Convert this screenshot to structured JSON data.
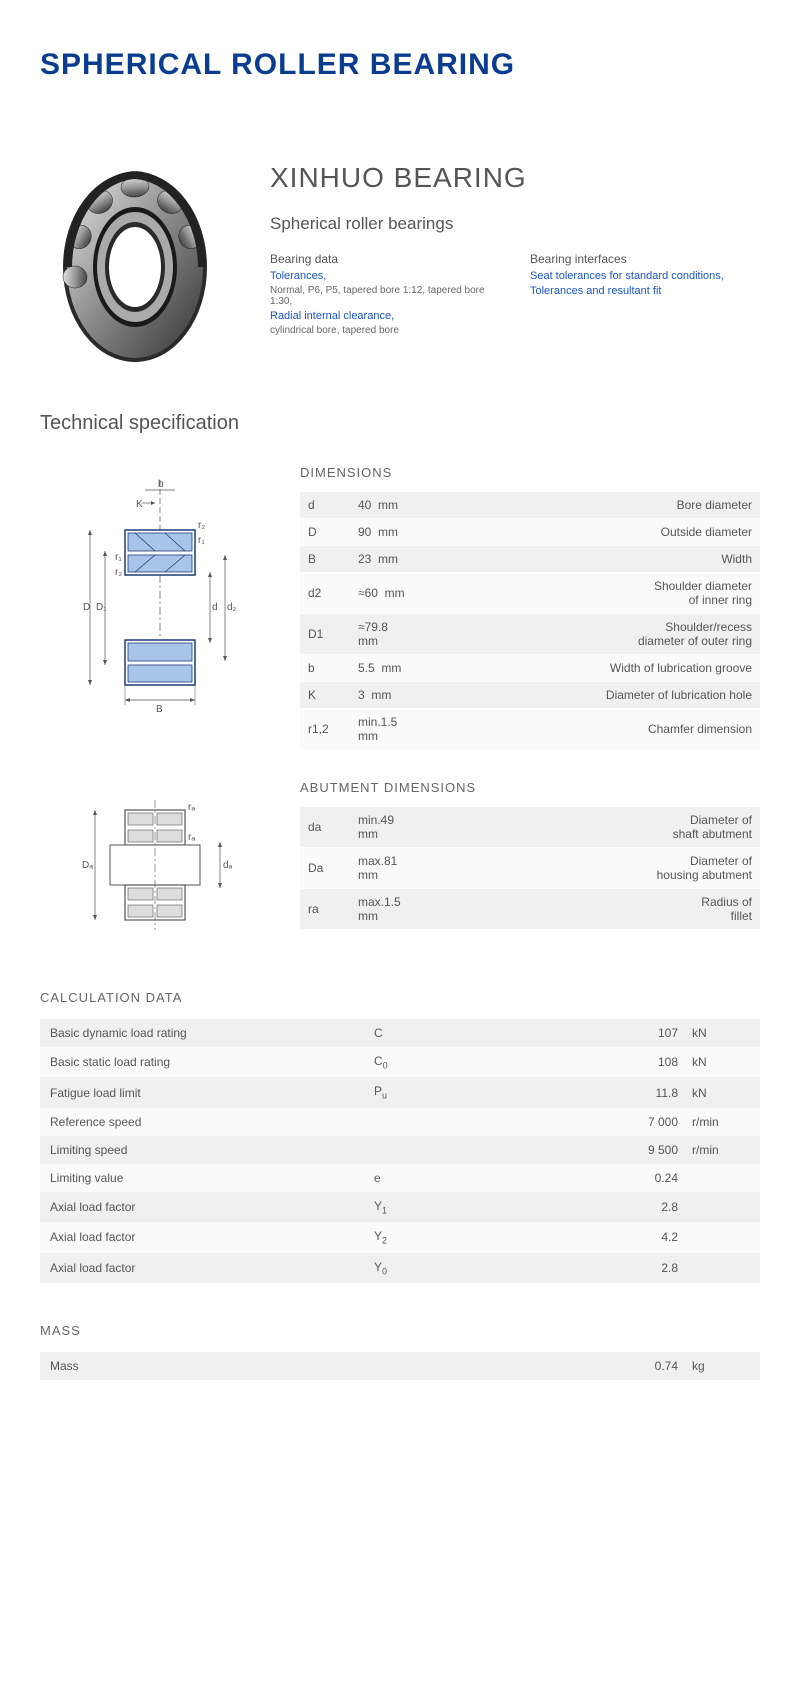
{
  "title": "SPHERICAL ROLLER BEARING",
  "brand": "XINHUO BEARING",
  "subtitle": "Spherical roller bearings",
  "bearingData": {
    "head": "Bearing data",
    "tolerances": "Tolerances,",
    "note1": "Normal, P6, P5, tapered bore 1:12, tapered bore 1:30,",
    "radial": "Radial internal clearance,",
    "note2": "cylindrical bore, tapered bore"
  },
  "bearingInterfaces": {
    "head": "Bearing interfaces",
    "seat": "Seat tolerances for standard conditions,",
    "tol": "Tolerances and resultant fit"
  },
  "techSpec": "Technical specification",
  "dimsLabel": "DIMENSIONS",
  "dims": [
    {
      "sym": "d",
      "val": "40",
      "unit": "mm",
      "desc": "Bore diameter"
    },
    {
      "sym": "D",
      "val": "90",
      "unit": "mm",
      "desc": "Outside diameter"
    },
    {
      "sym": "B",
      "val": "23",
      "unit": "mm",
      "desc": "Width"
    },
    {
      "sym": "d2",
      "val": "≈60",
      "unit": "mm",
      "desc": "Shoulder diameter of inner ring"
    },
    {
      "sym": "D1",
      "val": "≈79.8",
      "unit": "mm",
      "desc": "Shoulder/recess diameter of outer ring"
    },
    {
      "sym": "b",
      "val": "5.5",
      "unit": "mm",
      "desc": "Width of lubrication groove"
    },
    {
      "sym": "K",
      "val": "3",
      "unit": "mm",
      "desc": "Diameter of lubrication hole"
    },
    {
      "sym": "r1,2",
      "val": "min.1.5",
      "unit": "mm",
      "desc": "Chamfer dimension"
    }
  ],
  "abutLabel": "ABUTMENT DIMENSIONS",
  "abut": [
    {
      "sym": "da",
      "val": "min.49",
      "unit": "mm",
      "desc": "Diameter of shaft abutment"
    },
    {
      "sym": "Da",
      "val": "max.81",
      "unit": "mm",
      "desc": "Diameter of housing abutment"
    },
    {
      "sym": "ra",
      "val": "max.1.5",
      "unit": "mm",
      "desc": "Radius of fillet"
    }
  ],
  "calcLabel": "CALCULATION DATA",
  "calc": [
    {
      "label": "Basic dynamic load rating",
      "sym": "C",
      "sub": "",
      "val": "107",
      "unit": "kN"
    },
    {
      "label": "Basic static load rating",
      "sym": "C",
      "sub": "0",
      "val": "108",
      "unit": "kN"
    },
    {
      "label": "Fatigue load limit",
      "sym": "P",
      "sub": "u",
      "val": "11.8",
      "unit": "kN"
    },
    {
      "label": "Reference speed",
      "sym": "",
      "sub": "",
      "val": "7 000",
      "unit": "r/min"
    },
    {
      "label": "Limiting speed",
      "sym": "",
      "sub": "",
      "val": "9 500",
      "unit": "r/min"
    },
    {
      "label": "Limiting value",
      "sym": "e",
      "sub": "",
      "val": "0.24",
      "unit": ""
    },
    {
      "label": "Axial load factor",
      "sym": "Y",
      "sub": "1",
      "val": "2.8",
      "unit": ""
    },
    {
      "label": "Axial load factor",
      "sym": "Y",
      "sub": "2",
      "val": "4.2",
      "unit": ""
    },
    {
      "label": "Axial load factor",
      "sym": "Y",
      "sub": "0",
      "val": "2.8",
      "unit": ""
    }
  ],
  "massLabel": "MASS",
  "mass": {
    "label": "Mass",
    "val": "0.74",
    "unit": "kg"
  },
  "colors": {
    "blue": "#0a3c8f",
    "link": "#1a56c4",
    "rowOdd": "#f0f0f0",
    "rowEven": "#fafafa",
    "bearingLight": "#a8c4e8",
    "bearingDark": "#3a3a3a"
  }
}
